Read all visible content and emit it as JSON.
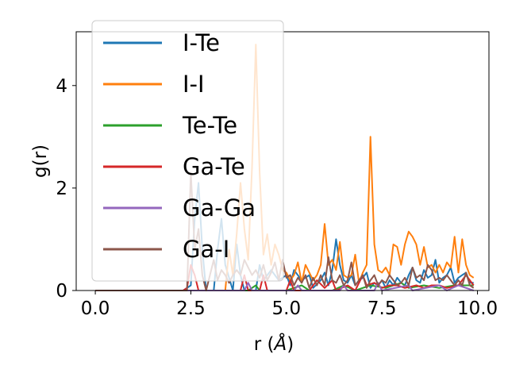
{
  "chart_data": {
    "type": "line",
    "xlabel": "r (",
    "xlabel_unit": "Å",
    "xlabel_close": ")",
    "ylabel": "g(r)",
    "xlim": [
      -0.5,
      10.3
    ],
    "ylim": [
      0,
      5.05
    ],
    "xticks": [
      0.0,
      2.5,
      5.0,
      7.5,
      10.0
    ],
    "xtick_labels": [
      "0.0",
      "2.5",
      "5.0",
      "7.5",
      "10.0"
    ],
    "yticks": [
      0,
      2,
      4
    ],
    "ytick_labels": [
      "0",
      "2",
      "4"
    ],
    "grid": false,
    "legend_position": "upper-left",
    "series": [
      {
        "name": "I-Te",
        "color": "#1f77b4",
        "points": [
          [
            0,
            0
          ],
          [
            2.3,
            0
          ],
          [
            2.5,
            0.1
          ],
          [
            2.6,
            1.4
          ],
          [
            2.7,
            2.1
          ],
          [
            2.8,
            0.8
          ],
          [
            2.9,
            0
          ],
          [
            3.1,
            0
          ],
          [
            3.2,
            0.8
          ],
          [
            3.3,
            1.4
          ],
          [
            3.4,
            0.5
          ],
          [
            3.6,
            0
          ],
          [
            3.7,
            0.9
          ],
          [
            3.8,
            0.3
          ],
          [
            3.9,
            0
          ],
          [
            4.2,
            0
          ],
          [
            4.3,
            0.5
          ],
          [
            4.4,
            0.2
          ],
          [
            4.6,
            0.4
          ],
          [
            4.8,
            0.2
          ],
          [
            5.0,
            0.3
          ],
          [
            5.1,
            0.1
          ],
          [
            5.2,
            0.4
          ],
          [
            5.4,
            0.2
          ],
          [
            5.6,
            0.3
          ],
          [
            5.7,
            0.05
          ],
          [
            5.9,
            0.2
          ],
          [
            6.0,
            0.35
          ],
          [
            6.1,
            0.1
          ],
          [
            6.2,
            0.4
          ],
          [
            6.3,
            1.0
          ],
          [
            6.4,
            0.5
          ],
          [
            6.5,
            0.2
          ],
          [
            6.6,
            0.15
          ],
          [
            6.7,
            0.3
          ],
          [
            6.8,
            0.1
          ],
          [
            6.9,
            0.2
          ],
          [
            7.0,
            0.25
          ],
          [
            7.1,
            0.35
          ],
          [
            7.2,
            0.05
          ],
          [
            7.3,
            0.15
          ],
          [
            7.4,
            0.1
          ],
          [
            7.5,
            0.2
          ],
          [
            7.6,
            0.05
          ],
          [
            7.7,
            0.2
          ],
          [
            7.8,
            0.1
          ],
          [
            7.9,
            0.25
          ],
          [
            8.0,
            0.15
          ],
          [
            8.1,
            0.1
          ],
          [
            8.2,
            0.3
          ],
          [
            8.3,
            0.45
          ],
          [
            8.4,
            0.2
          ],
          [
            8.5,
            0.15
          ],
          [
            8.6,
            0.4
          ],
          [
            8.7,
            0.25
          ],
          [
            8.8,
            0.3
          ],
          [
            8.9,
            0.6
          ],
          [
            9.0,
            0.15
          ],
          [
            9.1,
            0.25
          ],
          [
            9.2,
            0.3
          ],
          [
            9.3,
            0.45
          ],
          [
            9.4,
            0.15
          ],
          [
            9.5,
            0.25
          ],
          [
            9.6,
            0.3
          ],
          [
            9.7,
            0.35
          ],
          [
            9.8,
            0.15
          ],
          [
            9.9,
            0.15
          ]
        ]
      },
      {
        "name": "I-I",
        "color": "#ff7f0e",
        "points": [
          [
            0,
            0
          ],
          [
            3.4,
            0
          ],
          [
            3.5,
            0.8
          ],
          [
            3.6,
            0.3
          ],
          [
            3.7,
            1.1
          ],
          [
            3.8,
            2.1
          ],
          [
            3.9,
            1.2
          ],
          [
            4.0,
            0.6
          ],
          [
            4.1,
            2.4
          ],
          [
            4.2,
            4.8
          ],
          [
            4.3,
            2.3
          ],
          [
            4.4,
            0.7
          ],
          [
            4.5,
            1.1
          ],
          [
            4.6,
            0.5
          ],
          [
            4.7,
            0.9
          ],
          [
            4.8,
            0.7
          ],
          [
            4.9,
            0.4
          ],
          [
            5.0,
            0.35
          ],
          [
            5.1,
            0.2
          ],
          [
            5.2,
            0.3
          ],
          [
            5.3,
            0.55
          ],
          [
            5.4,
            0.15
          ],
          [
            5.5,
            0.5
          ],
          [
            5.6,
            0.35
          ],
          [
            5.7,
            0.2
          ],
          [
            5.8,
            0.3
          ],
          [
            5.9,
            0.5
          ],
          [
            6.0,
            1.3
          ],
          [
            6.1,
            0.5
          ],
          [
            6.2,
            0.6
          ],
          [
            6.3,
            0.4
          ],
          [
            6.4,
            0.95
          ],
          [
            6.5,
            0.3
          ],
          [
            6.6,
            0.25
          ],
          [
            6.7,
            0.3
          ],
          [
            6.8,
            0.7
          ],
          [
            6.9,
            0.15
          ],
          [
            7.0,
            0.35
          ],
          [
            7.1,
            0.5
          ],
          [
            7.2,
            3.0
          ],
          [
            7.3,
            0.9
          ],
          [
            7.4,
            0.4
          ],
          [
            7.5,
            0.35
          ],
          [
            7.6,
            0.45
          ],
          [
            7.7,
            0.3
          ],
          [
            7.8,
            0.9
          ],
          [
            7.9,
            0.85
          ],
          [
            8.0,
            0.5
          ],
          [
            8.1,
            0.9
          ],
          [
            8.2,
            1.15
          ],
          [
            8.3,
            1.05
          ],
          [
            8.4,
            0.9
          ],
          [
            8.5,
            0.5
          ],
          [
            8.6,
            0.85
          ],
          [
            8.7,
            0.45
          ],
          [
            8.8,
            0.5
          ],
          [
            8.9,
            0.35
          ],
          [
            9.0,
            0.5
          ],
          [
            9.1,
            0.35
          ],
          [
            9.2,
            0.55
          ],
          [
            9.3,
            0.45
          ],
          [
            9.4,
            1.05
          ],
          [
            9.5,
            0.35
          ],
          [
            9.6,
            1.0
          ],
          [
            9.7,
            0.5
          ],
          [
            9.8,
            0.3
          ],
          [
            9.9,
            0.25
          ]
        ]
      },
      {
        "name": "Te-Te",
        "color": "#2ca02c",
        "points": [
          [
            0,
            0
          ],
          [
            4.0,
            0
          ],
          [
            4.2,
            0.1
          ],
          [
            4.3,
            0
          ],
          [
            5.0,
            0
          ],
          [
            5.4,
            0.1
          ],
          [
            5.6,
            0
          ],
          [
            6.2,
            0
          ],
          [
            6.5,
            0.1
          ],
          [
            6.8,
            0
          ],
          [
            7.2,
            0.1
          ],
          [
            7.6,
            0.05
          ],
          [
            8.0,
            0.15
          ],
          [
            8.2,
            0.05
          ],
          [
            8.6,
            0.1
          ],
          [
            9.0,
            0.05
          ],
          [
            9.4,
            0.1
          ],
          [
            9.9,
            0.1
          ]
        ]
      },
      {
        "name": "Ga-Te",
        "color": "#d62728",
        "points": [
          [
            0,
            0
          ],
          [
            2.3,
            0
          ],
          [
            2.4,
            0.05
          ],
          [
            2.5,
            0.5
          ],
          [
            2.6,
            0.3
          ],
          [
            2.7,
            0
          ],
          [
            3.8,
            0
          ],
          [
            3.9,
            0.3
          ],
          [
            4.0,
            0
          ],
          [
            4.3,
            0
          ],
          [
            4.4,
            0.3
          ],
          [
            4.5,
            0
          ],
          [
            5.0,
            0
          ],
          [
            5.1,
            0.2
          ],
          [
            5.2,
            0
          ],
          [
            5.6,
            0
          ],
          [
            5.8,
            0.2
          ],
          [
            6.0,
            0.05
          ],
          [
            6.2,
            0.2
          ],
          [
            6.3,
            0
          ],
          [
            6.6,
            0.1
          ],
          [
            6.8,
            0
          ],
          [
            7.0,
            0.3
          ],
          [
            7.1,
            0.1
          ],
          [
            7.3,
            0.15
          ],
          [
            7.5,
            0.05
          ],
          [
            7.7,
            0.1
          ],
          [
            7.9,
            0.1
          ],
          [
            8.1,
            0.05
          ],
          [
            8.4,
            0.1
          ],
          [
            8.6,
            0.05
          ],
          [
            8.8,
            0.1
          ],
          [
            9.0,
            0.1
          ],
          [
            9.2,
            0.05
          ],
          [
            9.5,
            0.1
          ],
          [
            9.7,
            0.3
          ],
          [
            9.9,
            0.1
          ]
        ]
      },
      {
        "name": "Ga-Ga",
        "color": "#9467bd",
        "points": [
          [
            0,
            0
          ],
          [
            3.9,
            0
          ],
          [
            4.0,
            0.15
          ],
          [
            4.1,
            0
          ],
          [
            5.2,
            0
          ],
          [
            5.3,
            0.1
          ],
          [
            5.4,
            0
          ],
          [
            6.4,
            0
          ],
          [
            6.5,
            0.1
          ],
          [
            6.6,
            0
          ],
          [
            7.3,
            0
          ],
          [
            7.4,
            0.15
          ],
          [
            7.5,
            0
          ],
          [
            8.2,
            0.1
          ],
          [
            8.3,
            0
          ],
          [
            9.0,
            0.1
          ],
          [
            9.2,
            0
          ],
          [
            9.5,
            0.1
          ],
          [
            9.9,
            0
          ]
        ]
      },
      {
        "name": "Ga-I",
        "color": "#8c564b",
        "points": [
          [
            0,
            0
          ],
          [
            2.4,
            0
          ],
          [
            2.5,
            2.3
          ],
          [
            2.6,
            0.8
          ],
          [
            2.7,
            1.2
          ],
          [
            2.8,
            0.3
          ],
          [
            2.9,
            0
          ],
          [
            3.0,
            0.3
          ],
          [
            3.1,
            0.6
          ],
          [
            3.2,
            0.2
          ],
          [
            3.3,
            0.4
          ],
          [
            3.4,
            0.3
          ],
          [
            3.5,
            0.15
          ],
          [
            3.6,
            0.3
          ],
          [
            3.7,
            0.4
          ],
          [
            3.8,
            0.3
          ],
          [
            3.9,
            0.6
          ],
          [
            4.0,
            0.45
          ],
          [
            4.1,
            0.3
          ],
          [
            4.2,
            0.4
          ],
          [
            4.3,
            0.25
          ],
          [
            4.4,
            0.5
          ],
          [
            4.5,
            0.2
          ],
          [
            4.6,
            0.35
          ],
          [
            4.7,
            0.55
          ],
          [
            4.8,
            0.2
          ],
          [
            4.9,
            0.6
          ],
          [
            5.0,
            0.25
          ],
          [
            5.1,
            0.3
          ],
          [
            5.2,
            0.1
          ],
          [
            5.3,
            0.25
          ],
          [
            5.4,
            0.15
          ],
          [
            5.5,
            0.3
          ],
          [
            5.6,
            0.05
          ],
          [
            5.7,
            0.25
          ],
          [
            5.8,
            0.1
          ],
          [
            5.9,
            0.3
          ],
          [
            6.0,
            0.1
          ],
          [
            6.1,
            0.65
          ],
          [
            6.2,
            0.2
          ],
          [
            6.3,
            0.15
          ],
          [
            6.4,
            0.3
          ],
          [
            6.5,
            0.1
          ],
          [
            6.6,
            0.2
          ],
          [
            6.7,
            0.55
          ],
          [
            6.8,
            0.1
          ],
          [
            6.9,
            0.2
          ],
          [
            7.0,
            0.3
          ],
          [
            7.1,
            0.05
          ],
          [
            7.2,
            0.2
          ],
          [
            7.3,
            0.3
          ],
          [
            7.4,
            0.1
          ],
          [
            7.5,
            0.2
          ],
          [
            7.6,
            0.15
          ],
          [
            7.7,
            0.3
          ],
          [
            7.8,
            0.2
          ],
          [
            7.9,
            0.1
          ],
          [
            8.0,
            0.15
          ],
          [
            8.1,
            0.25
          ],
          [
            8.2,
            0.1
          ],
          [
            8.3,
            0.45
          ],
          [
            8.4,
            0.25
          ],
          [
            8.5,
            0.3
          ],
          [
            8.6,
            0.2
          ],
          [
            8.7,
            0.5
          ],
          [
            8.8,
            0.4
          ],
          [
            8.9,
            0.2
          ],
          [
            9.0,
            0.25
          ],
          [
            9.1,
            0.2
          ],
          [
            9.2,
            0.3
          ],
          [
            9.3,
            0.2
          ],
          [
            9.4,
            0.1
          ],
          [
            9.5,
            0.2
          ],
          [
            9.6,
            0.1
          ],
          [
            9.7,
            0.35
          ],
          [
            9.8,
            0.1
          ],
          [
            9.9,
            0.05
          ]
        ]
      }
    ]
  }
}
